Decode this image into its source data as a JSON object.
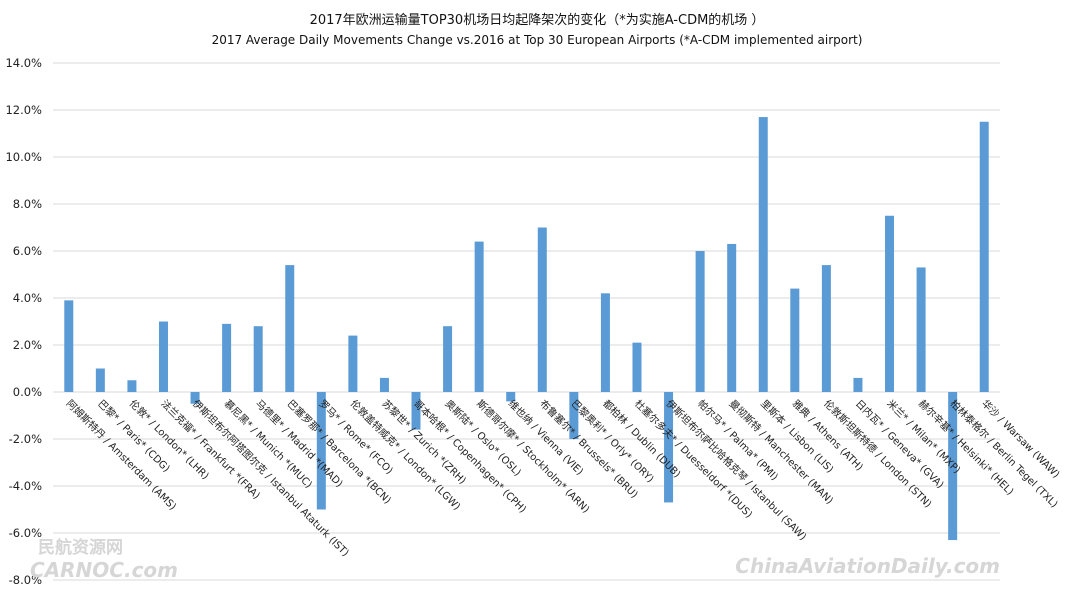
{
  "chart_data": {
    "type": "bar",
    "title": "2017年欧洲运输量TOP30机场日均起降架次的变化（*为实施A-CDM的机场 ）",
    "subtitle": "2017 Average Daily Movements Change vs.2016 at Top 30 European Airports (*A-CDM implemented  airport)",
    "xlabel": "",
    "ylabel": "",
    "ylim": [
      -0.08,
      0.14
    ],
    "y_tick_values": [
      -0.08,
      -0.06,
      -0.04,
      -0.02,
      0.0,
      0.02,
      0.04,
      0.06,
      0.08,
      0.1,
      0.12,
      0.14
    ],
    "y_tick_labels": [
      "-8.0%",
      "-6.0%",
      "-4.0%",
      "-2.0%",
      "0.0%",
      "2.0%",
      "4.0%",
      "6.0%",
      "8.0%",
      "10.0%",
      "12.0%",
      "14.0%"
    ],
    "grid": true,
    "bar_color": "#5b9bd5",
    "categories": [
      "阿姆斯特丹 / Amsterdam (AMS)",
      "巴黎* / Paris* (CDG)",
      "伦敦* / London* (LHR)",
      "法兰克福* / Frankfurt *(FRA)",
      "伊斯坦布尔阿塔图尔克 / Istanbul Ataturk (IST)",
      "慕尼黑* / Munich *(MUC)",
      "马德里* / Madrid *(MAD)",
      "巴塞罗那* / Barcelona *(BCN)",
      "罗马* / Rome* (FCO)",
      "伦敦盖特威克* / London* (LGW)",
      "苏黎世* / Zurich *(ZRH)",
      "哥本哈根* / Copenhagen* (CPH)",
      "奥斯陆* / Oslo* (OSL)",
      "斯德哥尔摩* / Stockholm* (ARN)",
      "维也纳 / Vienna (VIE)",
      "布鲁塞尔* / Brussels* (BRU)",
      "巴黎奥利* / Orly* (ORY)",
      "都柏林 / Dublin (DUB)",
      "杜塞尔多夫* / Duesseldorf *(DUS)",
      "伊斯坦布尔萨比哈格克琴 / Istanbul (SAW)",
      "帕尔马* / Palma* (PMI)",
      "曼彻斯特 / Manchester (MAN)",
      "里斯本 / Lisbon (LIS)",
      "雅典 / Athens (ATH)",
      "伦敦斯坦斯特德 / London (STN)",
      "日内瓦* / Geneva* (GVA)",
      "米兰* / Milan* (MXP)",
      "赫尔辛基* / Helsinki* (HEL)",
      "柏林泰格尔 / Berlin Tegel (TXL)",
      "华沙 / Warsaw (WAW)"
    ],
    "values": [
      0.039,
      0.01,
      0.005,
      0.03,
      -0.005,
      0.029,
      0.028,
      0.054,
      -0.05,
      0.024,
      0.006,
      -0.016,
      0.028,
      0.064,
      -0.004,
      0.07,
      -0.02,
      0.042,
      0.021,
      -0.047,
      0.06,
      0.063,
      0.117,
      0.044,
      0.054,
      0.006,
      0.075,
      0.053,
      -0.063,
      0.115
    ]
  },
  "watermarks": {
    "left_cn": "民航资源网",
    "left_en": "CARNOC.com",
    "right": "ChinaAviationDaily.com"
  }
}
